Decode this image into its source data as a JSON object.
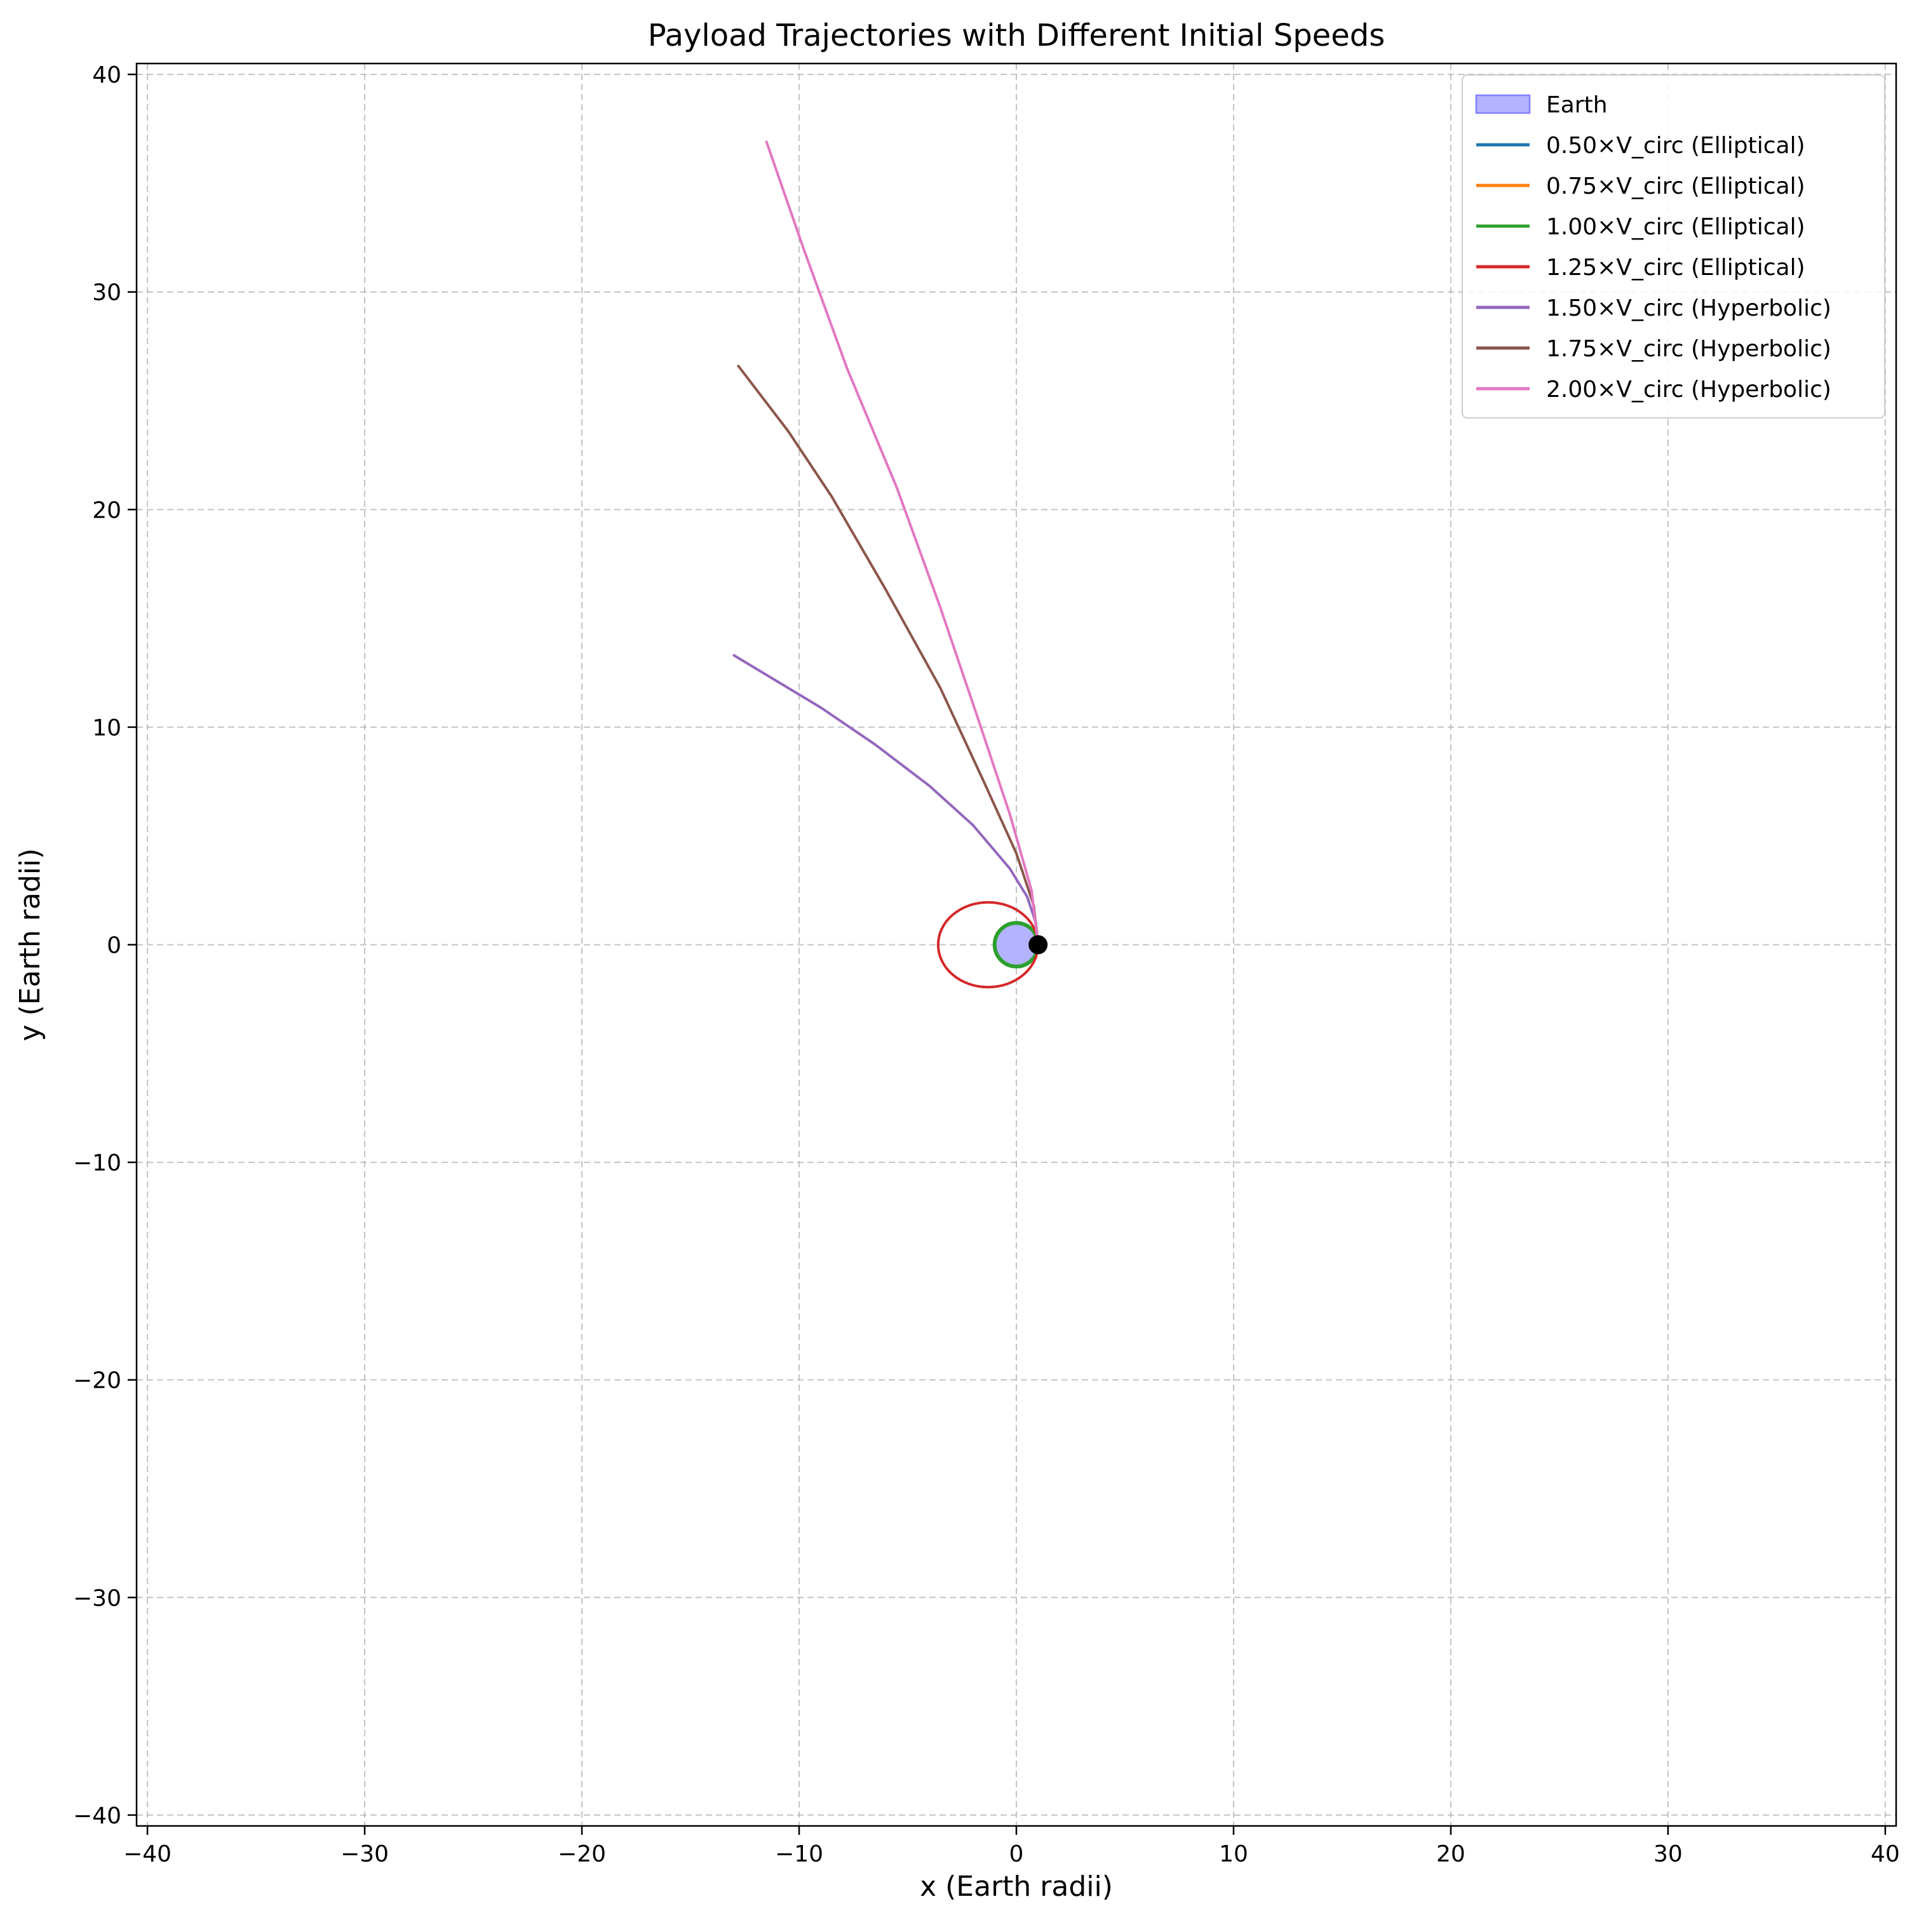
{
  "chart_data": {
    "type": "line",
    "title": "Payload Trajectories with Different Initial Speeds",
    "xlabel": "x (Earth radii)",
    "ylabel": "y (Earth radii)",
    "xlim": [
      -40.5,
      40.5
    ],
    "ylim": [
      -40.5,
      40.5
    ],
    "xticks": [
      -40,
      -30,
      -20,
      -10,
      0,
      10,
      20,
      30,
      40
    ],
    "yticks": [
      -40,
      -30,
      -20,
      -10,
      0,
      10,
      20,
      30,
      40
    ],
    "xtick_labels": [
      "−40",
      "−30",
      "−20",
      "−10",
      "0",
      "10",
      "20",
      "30",
      "40"
    ],
    "ytick_labels": [
      "−40",
      "−30",
      "−20",
      "−10",
      "0",
      "10",
      "20",
      "30",
      "40"
    ],
    "grid": true,
    "grid_color": "#b0b0b0",
    "legend_position": "top-right",
    "earth": {
      "label": "Earth",
      "center": [
        0,
        0
      ],
      "radius": 1,
      "fill": "#b3b3ff",
      "edge": "#8080ff"
    },
    "start_point": {
      "x": 1,
      "y": 0,
      "color": "#000000"
    },
    "series": [
      {
        "name": "0.50×V_circ (Elliptical)",
        "color": "#1f77b4",
        "points": [
          [
            1.0,
            0.0
          ],
          [
            0.99,
            0.02
          ],
          [
            0.97,
            0.04
          ]
        ]
      },
      {
        "name": "0.75×V_circ (Elliptical)",
        "color": "#ff7f0e",
        "points": [
          [
            1.0,
            0.0
          ],
          [
            0.98,
            0.06
          ],
          [
            0.95,
            0.1
          ]
        ]
      },
      {
        "name": "1.00×V_circ (Elliptical)",
        "color": "#2ca02c",
        "circle": {
          "cx": 0,
          "cy": 0,
          "r": 1
        }
      },
      {
        "name": "1.25×V_circ (Elliptical)",
        "color": "#d62728",
        "ellipse": {
          "cx": -1.3,
          "cy": 0,
          "rx": 2.3,
          "ry": 1.95
        }
      },
      {
        "name": "1.50×V_circ (Hyperbolic)",
        "color": "#9467bd",
        "points": [
          [
            1.0,
            0.0
          ],
          [
            0.9,
            1.0
          ],
          [
            0.5,
            2.2
          ],
          [
            -0.3,
            3.5
          ],
          [
            -2.0,
            5.5
          ],
          [
            -4.0,
            7.3
          ],
          [
            -6.5,
            9.2
          ],
          [
            -9.0,
            10.9
          ],
          [
            -11.0,
            12.1
          ],
          [
            -13.0,
            13.3
          ]
        ]
      },
      {
        "name": "1.75×V_circ (Hyperbolic)",
        "color": "#8c564b",
        "points": [
          [
            1.0,
            0.0
          ],
          [
            0.8,
            1.8
          ],
          [
            0.0,
            4.2
          ],
          [
            -1.5,
            7.5
          ],
          [
            -3.5,
            11.8
          ],
          [
            -6.0,
            16.3
          ],
          [
            -8.5,
            20.6
          ],
          [
            -10.5,
            23.6
          ],
          [
            -12.8,
            26.6
          ]
        ]
      },
      {
        "name": "2.00×V_circ (Hyperbolic)",
        "color": "#e377c2",
        "points": [
          [
            1.0,
            0.0
          ],
          [
            0.7,
            2.5
          ],
          [
            -0.3,
            6.0
          ],
          [
            -1.8,
            10.5
          ],
          [
            -3.5,
            15.5
          ],
          [
            -5.5,
            21.0
          ],
          [
            -7.8,
            26.5
          ],
          [
            -9.8,
            32.0
          ],
          [
            -11.5,
            36.9
          ]
        ]
      }
    ]
  }
}
